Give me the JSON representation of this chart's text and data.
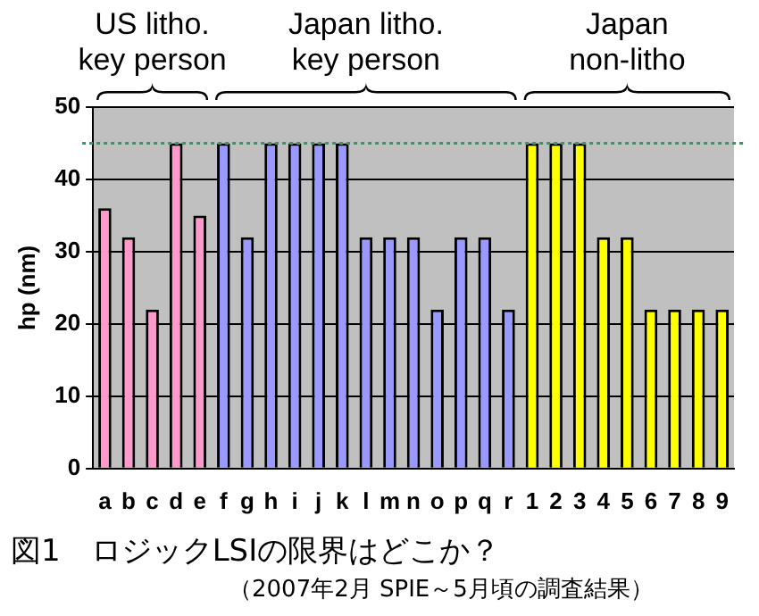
{
  "chart_data": {
    "type": "bar",
    "title": "図1　ロジックLSIの限界はどこか？",
    "subtitle": "（2007年2月 SPIE～5月頃の調査結果）",
    "ylabel": "hp (nm)",
    "categories": [
      "a",
      "b",
      "c",
      "d",
      "e",
      "f",
      "g",
      "h",
      "i",
      "j",
      "k",
      "l",
      "m",
      "n",
      "o",
      "p",
      "q",
      "r",
      "1",
      "2",
      "3",
      "4",
      "5",
      "6",
      "7",
      "8",
      "9"
    ],
    "values": [
      36,
      32,
      22,
      45,
      35,
      45,
      32,
      45,
      45,
      45,
      45,
      32,
      32,
      32,
      22,
      32,
      32,
      22,
      45,
      45,
      45,
      32,
      32,
      22,
      22,
      22,
      22
    ],
    "colors": [
      "#ff99cc",
      "#ff99cc",
      "#ff99cc",
      "#ff99cc",
      "#ff99cc",
      "#9999ff",
      "#9999ff",
      "#9999ff",
      "#9999ff",
      "#9999ff",
      "#9999ff",
      "#9999ff",
      "#9999ff",
      "#9999ff",
      "#9999ff",
      "#9999ff",
      "#9999ff",
      "#9999ff",
      "#ffff00",
      "#ffff00",
      "#ffff00",
      "#ffff00",
      "#ffff00",
      "#ffff00",
      "#ffff00",
      "#ffff00",
      "#ffff00"
    ],
    "annotations": [
      "US litho.\nkey person",
      "Japan litho.\nkey person",
      "Japan\nnon-litho"
    ],
    "ref_lines": [
      {
        "axis": "y",
        "value": 45,
        "color": "#339966",
        "line_style": "dotted"
      }
    ],
    "ylim": [
      0,
      50
    ],
    "yticks": [
      0,
      10,
      20,
      30,
      40,
      50
    ],
    "grid": "y",
    "legend": false
  }
}
